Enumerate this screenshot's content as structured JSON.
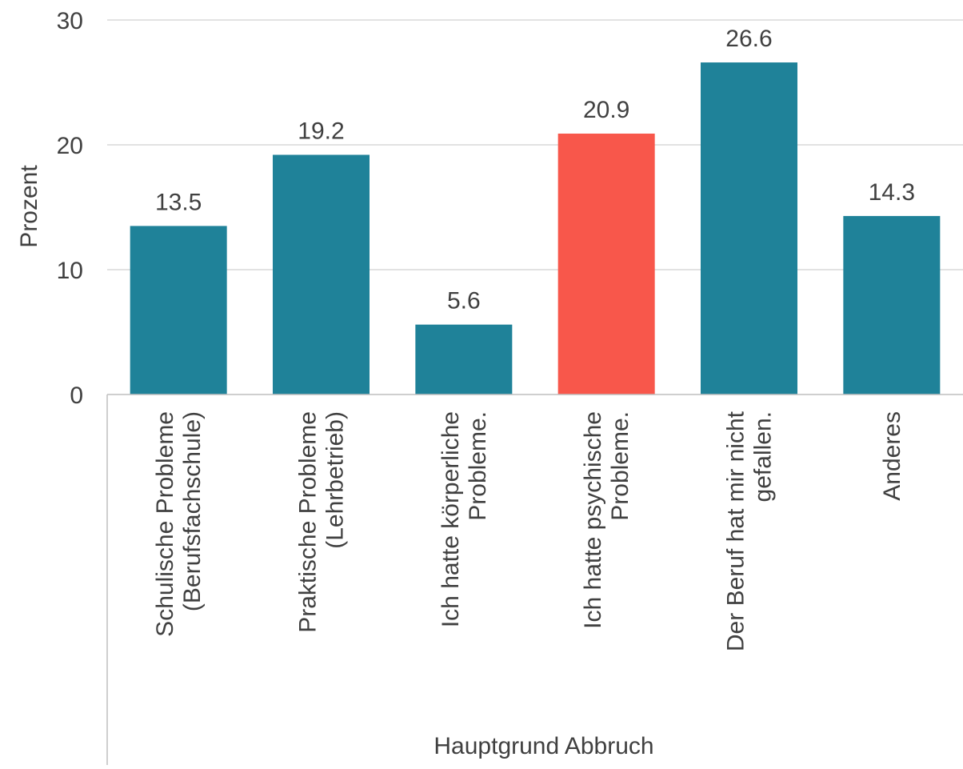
{
  "chart_data": {
    "type": "bar",
    "categories": [
      [
        "Schulische Probleme",
        "(Berufsfachschule)"
      ],
      [
        "Praktische Probleme",
        "(Lehrbetrieb)"
      ],
      [
        "Ich hatte körperliche",
        "Probleme."
      ],
      [
        "Ich hatte psychische",
        "Probleme."
      ],
      [
        "Der Beruf hat mir nicht",
        "gefallen."
      ],
      [
        "Anderes"
      ]
    ],
    "values": [
      13.5,
      19.2,
      5.6,
      20.9,
      26.6,
      14.3
    ],
    "data_labels": [
      "13.5",
      "19.2",
      "5.6",
      "20.9",
      "26.6",
      "14.3"
    ],
    "highlight_index": 3,
    "colors": {
      "bar": "#1f8299",
      "highlight": "#f8574b",
      "grid": "#d9d9d9",
      "text": "#404040"
    },
    "xlabel": "Hauptgrund Abbruch",
    "ylabel": "Prozent",
    "ylim": [
      0,
      30
    ],
    "yticks": [
      0,
      10,
      20,
      30
    ],
    "ytick_labels": [
      "0",
      "10",
      "20",
      "30"
    ],
    "grid": true,
    "legend": "none"
  }
}
